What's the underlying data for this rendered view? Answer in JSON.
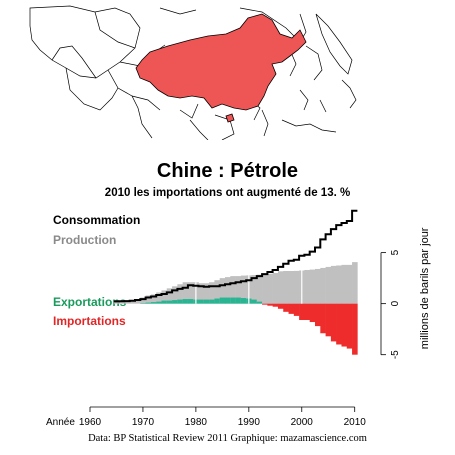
{
  "header": {
    "title": "Chine :  Pétrole",
    "subtitle": "2010 les importations ont augmenté de 13. %"
  },
  "legend": {
    "consumption": "Consommation",
    "production": "Production",
    "exports": "Exportations",
    "imports": "Importations"
  },
  "footer": {
    "credit": "Data: BP Statistical Review 2011   Graphique: mazamascience.com"
  },
  "colors": {
    "consumption": "#000000",
    "production": "#c0c0c0",
    "exports": "#2ab592",
    "imports": "#ee2c2c",
    "china": "#ee5555"
  },
  "map": {
    "highlighted_country": "China"
  },
  "chart_data": {
    "type": "area",
    "x_axis_label": "Année",
    "ylabel": "millions de barils par jour",
    "xlim": [
      1960,
      2011
    ],
    "ylim": [
      -6.5,
      8
    ],
    "x_ticks": [
      1960,
      1970,
      1980,
      1990,
      2000,
      2010
    ],
    "y_ticks": [
      -5,
      0,
      5
    ],
    "x": [
      1965,
      1966,
      1967,
      1968,
      1969,
      1970,
      1971,
      1972,
      1973,
      1974,
      1975,
      1976,
      1977,
      1978,
      1979,
      1980,
      1981,
      1982,
      1983,
      1984,
      1985,
      1986,
      1987,
      1988,
      1989,
      1990,
      1991,
      1992,
      1993,
      1994,
      1995,
      1996,
      1997,
      1998,
      1999,
      2000,
      2001,
      2002,
      2003,
      2004,
      2005,
      2006,
      2007,
      2008,
      2009,
      2010
    ],
    "series": [
      {
        "name": "Consommation",
        "values": [
          0.22,
          0.23,
          0.25,
          0.28,
          0.36,
          0.45,
          0.6,
          0.7,
          0.85,
          0.95,
          1.1,
          1.3,
          1.45,
          1.55,
          1.8,
          1.75,
          1.7,
          1.65,
          1.7,
          1.7,
          1.8,
          1.9,
          2.0,
          2.1,
          2.2,
          2.3,
          2.5,
          2.7,
          2.9,
          3.1,
          3.3,
          3.6,
          3.9,
          4.2,
          4.3,
          4.7,
          4.8,
          5.1,
          5.5,
          6.3,
          6.8,
          7.3,
          7.7,
          7.9,
          8.1,
          9.1
        ]
      },
      {
        "name": "Production",
        "values": [
          0.22,
          0.25,
          0.28,
          0.3,
          0.4,
          0.6,
          0.8,
          0.9,
          1.1,
          1.3,
          1.5,
          1.7,
          1.9,
          2.1,
          2.1,
          2.1,
          2.0,
          2.0,
          2.1,
          2.3,
          2.5,
          2.6,
          2.7,
          2.7,
          2.75,
          2.77,
          2.8,
          2.84,
          2.9,
          2.93,
          3.0,
          3.17,
          3.2,
          3.2,
          3.21,
          3.25,
          3.3,
          3.34,
          3.4,
          3.5,
          3.6,
          3.7,
          3.74,
          3.8,
          3.8,
          4.07
        ]
      },
      {
        "name": "Exportations",
        "values": [
          0,
          0,
          0,
          0,
          0,
          0.05,
          0.1,
          0.15,
          0.2,
          0.3,
          0.3,
          0.35,
          0.4,
          0.45,
          0.45,
          0.4,
          0.4,
          0.4,
          0.4,
          0.5,
          0.6,
          0.6,
          0.6,
          0.6,
          0.55,
          0.5,
          0.4,
          0.2,
          0,
          0,
          0,
          0,
          0,
          0,
          0,
          0,
          0,
          0,
          0,
          0,
          0,
          0,
          0,
          0,
          0,
          0
        ]
      },
      {
        "name": "Importations",
        "values": [
          0,
          0,
          0,
          0,
          0,
          0,
          0,
          0,
          0,
          0,
          0,
          0,
          0,
          0,
          0,
          0,
          0,
          0,
          0,
          0,
          0,
          0,
          0,
          0,
          0,
          0,
          0,
          0,
          0.1,
          0.2,
          0.3,
          0.5,
          0.8,
          1.0,
          1.2,
          1.6,
          1.6,
          1.8,
          2.2,
          2.9,
          3.2,
          3.7,
          4.0,
          4.2,
          4.4,
          5.0
        ]
      }
    ]
  }
}
